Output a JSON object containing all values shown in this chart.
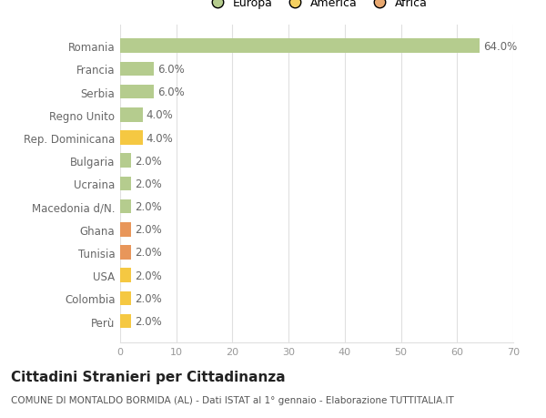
{
  "title": "Cittadini Stranieri per Cittadinanza",
  "subtitle": "COMUNE DI MONTALDO BORMIDA (AL) - Dati ISTAT al 1° gennaio - Elaborazione TUTTITALIA.IT",
  "categories": [
    "Perù",
    "Colombia",
    "USA",
    "Tunisia",
    "Ghana",
    "Macedonia d/N.",
    "Ucraina",
    "Bulgaria",
    "Rep. Dominicana",
    "Regno Unito",
    "Serbia",
    "Francia",
    "Romania"
  ],
  "values": [
    2.0,
    2.0,
    2.0,
    2.0,
    2.0,
    2.0,
    2.0,
    2.0,
    4.0,
    4.0,
    6.0,
    6.0,
    64.0
  ],
  "colors": [
    "#f5c842",
    "#f5c842",
    "#f5c842",
    "#e8965a",
    "#e8965a",
    "#b5cc8e",
    "#b5cc8e",
    "#b5cc8e",
    "#f5c842",
    "#b5cc8e",
    "#b5cc8e",
    "#b5cc8e",
    "#b5cc8e"
  ],
  "legend_labels": [
    "Europa",
    "America",
    "Africa"
  ],
  "legend_colors": [
    "#b5cc8e",
    "#f5d060",
    "#e8a870"
  ],
  "xlim": [
    0,
    70
  ],
  "xticks": [
    0,
    10,
    20,
    30,
    40,
    50,
    60,
    70
  ],
  "background_color": "#ffffff",
  "grid_color": "#e0e0e0",
  "bar_label_color": "#666666",
  "ytick_color": "#666666",
  "xtick_color": "#999999",
  "label_fontsize": 8.5,
  "ytick_fontsize": 8.5,
  "xtick_fontsize": 8,
  "title_fontsize": 11,
  "subtitle_fontsize": 7.5,
  "legend_fontsize": 9
}
